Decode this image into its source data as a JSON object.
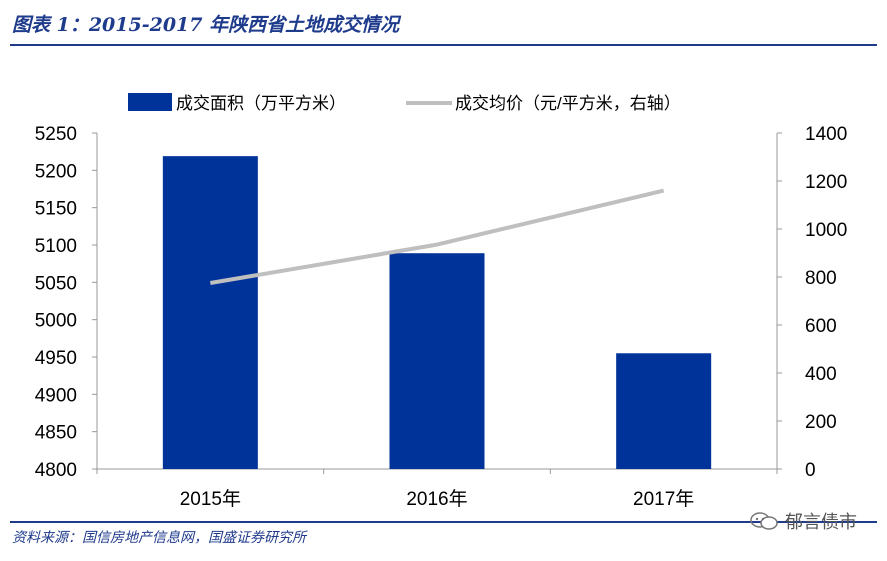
{
  "figure": {
    "title": "图表 1：2015-2017 年陕西省土地成交情况",
    "source": "资料来源：国信房地产信息网，国盛证券研究所",
    "watermark": "郁言债市"
  },
  "chart_data": {
    "type": "bar",
    "categories": [
      "2015年",
      "2016年",
      "2017年"
    ],
    "series": [
      {
        "name": "成交面积（万平方米）",
        "type": "bar",
        "axis": "left",
        "color": "#003399",
        "values": [
          5219,
          5089,
          4955
        ]
      },
      {
        "name": "成交均价（元/平方米，右轴）",
        "type": "line",
        "axis": "right",
        "color": "#bfbfbf",
        "values": [
          775,
          935,
          1160
        ]
      }
    ],
    "y_left": {
      "ylim": [
        4800,
        5250
      ],
      "ticks": [
        4800,
        4850,
        4900,
        4950,
        5000,
        5050,
        5100,
        5150,
        5200,
        5250
      ]
    },
    "y_right": {
      "ylim": [
        0,
        1400
      ],
      "ticks": [
        0,
        200,
        400,
        600,
        800,
        1000,
        1200,
        1400
      ]
    },
    "legend_position": "top",
    "grid": false
  }
}
